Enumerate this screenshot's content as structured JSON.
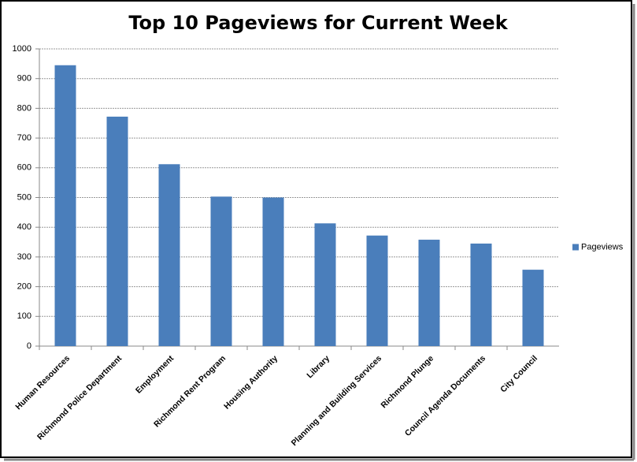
{
  "chart_data": {
    "type": "bar",
    "title": "Top 10 Pageviews for Current Week",
    "categories": [
      "Human Resources",
      "Richmond Police Department",
      "Employment",
      "Richmond Rent Program",
      "Housing Authority",
      "Library",
      "Planning and Building Services",
      "Richmond Plunge",
      "Council Agenda Documents",
      "City Council"
    ],
    "series": [
      {
        "name": "Pageviews",
        "color": "#4a7ebb",
        "values": [
          945,
          772,
          612,
          503,
          500,
          413,
          372,
          358,
          345,
          257
        ]
      }
    ],
    "ylim": [
      0,
      1000
    ],
    "yticks": [
      0,
      100,
      200,
      300,
      400,
      500,
      600,
      700,
      800,
      900,
      1000
    ],
    "grid": true,
    "legend": "right"
  }
}
